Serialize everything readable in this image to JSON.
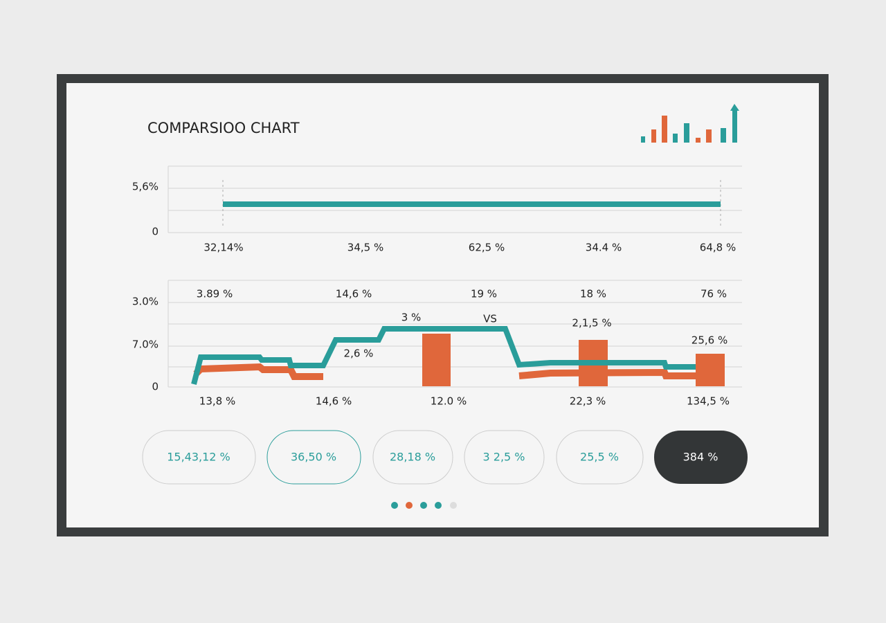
{
  "header": {
    "title": "COMPARSIOO CHART"
  },
  "top_chart": {
    "y_labels": [
      "5,6%",
      "0"
    ],
    "x_labels": [
      "32,14%",
      "34,5 %",
      "62,5 %",
      "34.4 %",
      "64,8 %"
    ]
  },
  "bottom_chart": {
    "y_labels": [
      "3.0%",
      "7.0%",
      "0"
    ],
    "top_labels": [
      "3.89 %",
      "14,6 %",
      "19 %",
      "18 %",
      "76 %"
    ],
    "annotations": [
      "3 %",
      "VS",
      "2,6 %",
      "2,1,5 %",
      "25,6 %"
    ],
    "x_labels": [
      "13,8 %",
      "14,6 %",
      "12.0 %",
      "22,3 %",
      "134,5 %"
    ]
  },
  "pills": [
    "15,43,12 %",
    "36,50 %",
    "28,18 %",
    "3 2,5 %",
    "25,5 %",
    "384 %"
  ]
}
